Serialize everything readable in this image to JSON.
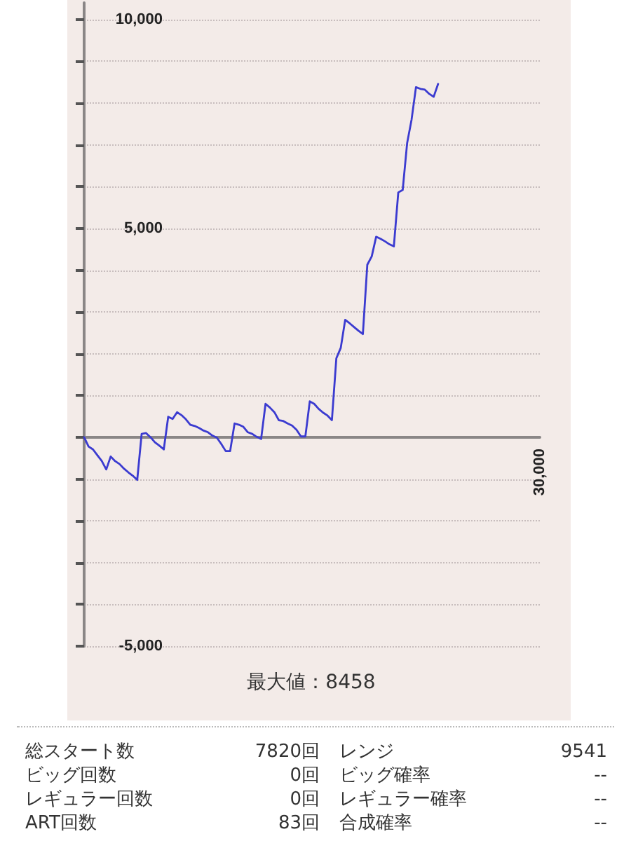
{
  "chart_data": {
    "type": "line",
    "categories": [
      null,
      null,
      null,
      null,
      null,
      null,
      null,
      null,
      null,
      null,
      null,
      null,
      null,
      null,
      null,
      null,
      null,
      null,
      null,
      null,
      null,
      null,
      null,
      null,
      null,
      null,
      null,
      null,
      null,
      null,
      null,
      null,
      null,
      null,
      null,
      null,
      null,
      null,
      null,
      null,
      null,
      null,
      null,
      null,
      null,
      null,
      null,
      null,
      null,
      null,
      null,
      null,
      null,
      null,
      null,
      null,
      null,
      null,
      null,
      null,
      null,
      null,
      null,
      null,
      null,
      null,
      null,
      null,
      null,
      null,
      null,
      null,
      null,
      null,
      null,
      null,
      null,
      null,
      null,
      null,
      null,
      null,
      null,
      null,
      null,
      null,
      null,
      null,
      null,
      null,
      null,
      null,
      null,
      null,
      null,
      null,
      null,
      null,
      null,
      null,
      null,
      null,
      null,
      null
    ],
    "values": [
      0,
      -220,
      -290,
      -430,
      -570,
      -770,
      -460,
      -570,
      -640,
      -750,
      -840,
      -920,
      -1020,
      80,
      100,
      0,
      -120,
      -200,
      -290,
      490,
      440,
      600,
      530,
      430,
      300,
      270,
      220,
      160,
      120,
      40,
      -10,
      -160,
      -330,
      -330,
      330,
      300,
      250,
      120,
      80,
      10,
      -40,
      800,
      710,
      600,
      410,
      390,
      330,
      280,
      180,
      20,
      20,
      860,
      800,
      680,
      590,
      520,
      410,
      1890,
      2140,
      2810,
      2730,
      2640,
      2550,
      2470,
      4130,
      4330,
      4800,
      4750,
      4690,
      4620,
      4570,
      5860,
      5920,
      7040,
      7600,
      8380,
      8340,
      8320,
      8220,
      8150,
      8458,
      null,
      null,
      null,
      null,
      null,
      null,
      null,
      null,
      null,
      null,
      null,
      null,
      null,
      null,
      null,
      null,
      null,
      null,
      null,
      null,
      null,
      null,
      null
    ],
    "color": "#3b3bd0",
    "ylim": [
      -5000,
      10400
    ],
    "yticks": [
      {
        "value": -5000,
        "label": "-5,000"
      },
      {
        "value": -4000,
        "label": null
      },
      {
        "value": -3000,
        "label": null
      },
      {
        "value": -2000,
        "label": null
      },
      {
        "value": -1000,
        "label": null
      },
      {
        "value": 0,
        "label": null
      },
      {
        "value": 1000,
        "label": null
      },
      {
        "value": 2000,
        "label": null
      },
      {
        "value": 3000,
        "label": null
      },
      {
        "value": 4000,
        "label": null
      },
      {
        "value": 5000,
        "label": "5,000"
      },
      {
        "value": 6000,
        "label": null
      },
      {
        "value": 7000,
        "label": null
      },
      {
        "value": 8000,
        "label": null
      },
      {
        "value": 9000,
        "label": null
      },
      {
        "value": 10000,
        "label": "10,000"
      }
    ],
    "grid": "y",
    "marker": "none",
    "line_style": "solid",
    "annotations": [
      "最大値：8458",
      "30,000",
      "総スタート数",
      "7820回",
      "レンジ",
      "9541",
      "ビッグ回数",
      "0回",
      "ビッグ確率",
      "--",
      "レギュラー回数",
      "0回",
      "レギュラー確率",
      "--",
      "ART回数",
      "83回",
      "合成確率",
      "--"
    ]
  }
}
